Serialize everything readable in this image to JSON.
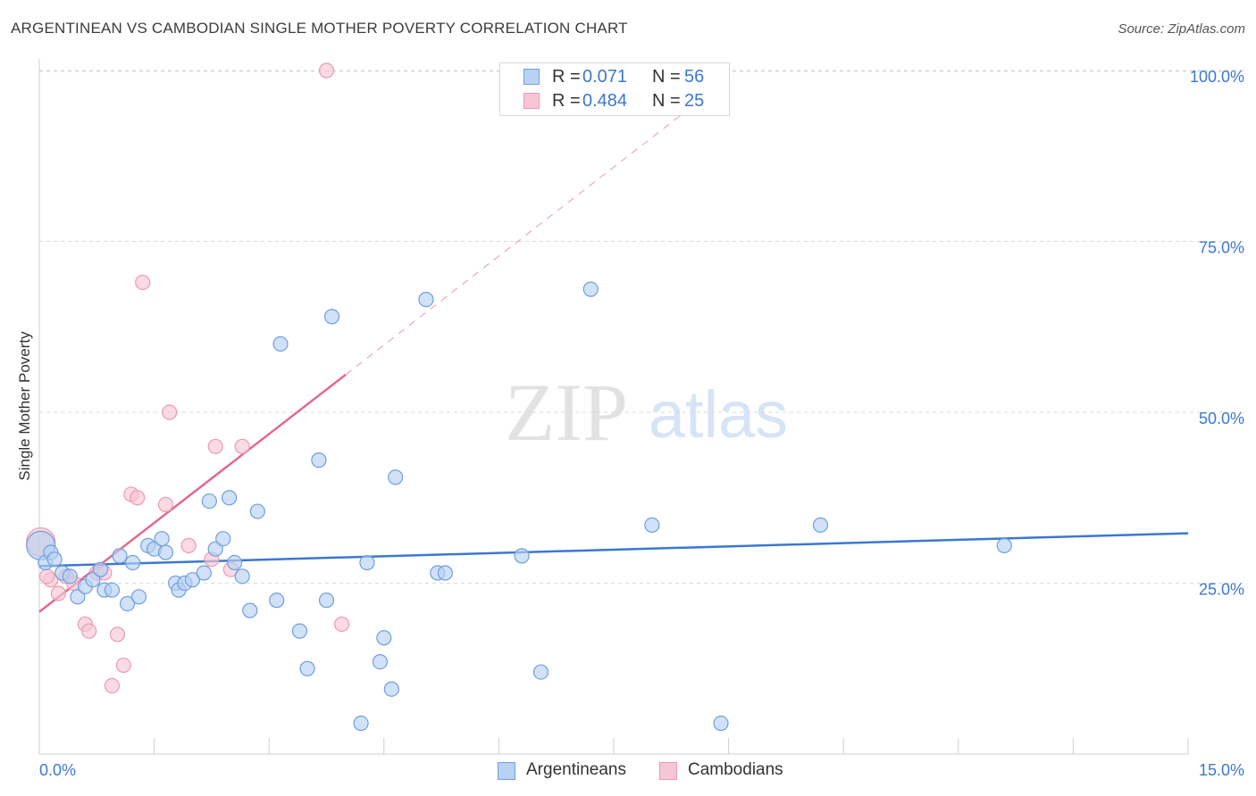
{
  "header": {
    "title": "ARGENTINEAN VS CAMBODIAN SINGLE MOTHER POVERTY CORRELATION CHART",
    "source": "Source: ZipAtlas.com"
  },
  "legend_top": {
    "rows": [
      {
        "r_label": "R =",
        "r_value": "0.071",
        "n_label": "N =",
        "n_value": "56"
      },
      {
        "r_label": "R =",
        "r_value": "0.484",
        "n_label": "N =",
        "n_value": "25"
      }
    ]
  },
  "legend_bottom": {
    "items": [
      {
        "label": "Argentineans"
      },
      {
        "label": "Cambodians"
      }
    ]
  },
  "watermark": {
    "zip": "ZIP",
    "atlas": "atlas"
  },
  "colors": {
    "blue": "#3b78d0",
    "blue_fill": "#b9d1f2",
    "blue_stroke": "#6f9fde",
    "pink": "#e2698f",
    "pink_fill": "#f7c6d4",
    "pink_stroke": "#eb9ab2",
    "grid": "#d9d9d9",
    "axis_label": "#3b78d0"
  },
  "chart_data": {
    "type": "scatter",
    "title": "ARGENTINEAN VS CAMBODIAN SINGLE MOTHER POVERTY CORRELATION CHART",
    "xlabel": "",
    "ylabel": "Single Mother Poverty",
    "xlim": [
      0,
      15
    ],
    "ylim": [
      0,
      100
    ],
    "x_tick_labels": [
      "0.0%",
      "15.0%"
    ],
    "y_tick_labels": [
      "25.0%",
      "50.0%",
      "75.0%",
      "100.0%"
    ],
    "y_ticks": [
      25,
      50,
      75,
      100
    ],
    "grid": true,
    "series": [
      {
        "name": "Argentineans",
        "color": "#3b78d0",
        "R": 0.071,
        "N": 56,
        "trend": {
          "x0": 0.0,
          "y0": 27.5,
          "x1": 15.0,
          "y1": 32.3,
          "dash_x1": 15.0
        },
        "points": [
          [
            0.02,
            30.5
          ],
          [
            0.08,
            28.0
          ],
          [
            0.15,
            29.5
          ],
          [
            0.2,
            28.5
          ],
          [
            0.3,
            26.5
          ],
          [
            0.4,
            26.0
          ],
          [
            0.5,
            23.0
          ],
          [
            0.6,
            24.5
          ],
          [
            0.7,
            25.5
          ],
          [
            0.8,
            27.0
          ],
          [
            0.85,
            24.0
          ],
          [
            0.95,
            24.0
          ],
          [
            1.05,
            29.0
          ],
          [
            1.15,
            22.0
          ],
          [
            1.22,
            28.0
          ],
          [
            1.3,
            23.0
          ],
          [
            1.42,
            30.5
          ],
          [
            1.5,
            30.0
          ],
          [
            1.6,
            31.5
          ],
          [
            1.65,
            29.5
          ],
          [
            1.78,
            25.0
          ],
          [
            1.82,
            24.0
          ],
          [
            1.9,
            25.0
          ],
          [
            2.0,
            25.5
          ],
          [
            2.15,
            26.5
          ],
          [
            2.22,
            37.0
          ],
          [
            2.3,
            30.0
          ],
          [
            2.4,
            31.5
          ],
          [
            2.48,
            37.5
          ],
          [
            2.55,
            28.0
          ],
          [
            2.65,
            26.0
          ],
          [
            2.75,
            21.0
          ],
          [
            2.85,
            35.5
          ],
          [
            3.1,
            22.5
          ],
          [
            3.15,
            60.0
          ],
          [
            3.4,
            18.0
          ],
          [
            3.5,
            12.5
          ],
          [
            3.65,
            43.0
          ],
          [
            3.75,
            22.5
          ],
          [
            3.82,
            64.0
          ],
          [
            4.2,
            4.5
          ],
          [
            4.28,
            28.0
          ],
          [
            4.45,
            13.5
          ],
          [
            4.5,
            17.0
          ],
          [
            4.6,
            9.5
          ],
          [
            4.65,
            40.5
          ],
          [
            5.05,
            66.5
          ],
          [
            5.2,
            26.5
          ],
          [
            5.3,
            26.5
          ],
          [
            6.3,
            29.0
          ],
          [
            6.55,
            12.0
          ],
          [
            7.2,
            68.0
          ],
          [
            8.0,
            33.5
          ],
          [
            8.9,
            4.5
          ],
          [
            10.2,
            33.5
          ],
          [
            12.6,
            30.5
          ]
        ]
      },
      {
        "name": "Cambodians",
        "color": "#e2698f",
        "R": 0.484,
        "N": 25,
        "trend": {
          "x0": 0.0,
          "y0": 20.8,
          "x1": 4.0,
          "y1": 55.5,
          "dash_x1": 9.0
        },
        "points": [
          [
            0.02,
            31.0
          ],
          [
            0.15,
            25.5
          ],
          [
            0.25,
            23.5
          ],
          [
            0.35,
            26.0
          ],
          [
            0.45,
            25.0
          ],
          [
            0.6,
            19.0
          ],
          [
            0.65,
            18.0
          ],
          [
            0.75,
            26.5
          ],
          [
            0.85,
            26.5
          ],
          [
            0.95,
            10.0
          ],
          [
            1.02,
            17.5
          ],
          [
            1.1,
            13.0
          ],
          [
            1.2,
            38.0
          ],
          [
            1.28,
            37.5
          ],
          [
            1.35,
            69.0
          ],
          [
            1.65,
            36.5
          ],
          [
            1.7,
            50.0
          ],
          [
            1.95,
            30.5
          ],
          [
            2.3,
            45.0
          ],
          [
            2.25,
            28.5
          ],
          [
            2.5,
            27.0
          ],
          [
            2.65,
            45.0
          ],
          [
            3.75,
            100.0
          ],
          [
            3.95,
            19.0
          ],
          [
            0.1,
            26.0
          ]
        ]
      }
    ]
  }
}
